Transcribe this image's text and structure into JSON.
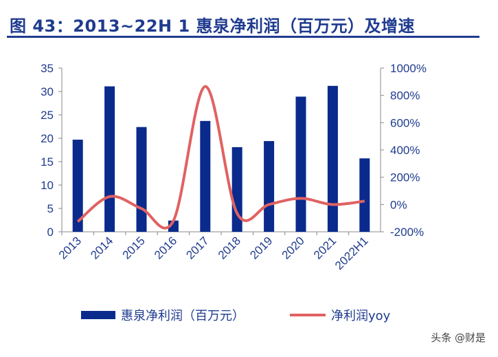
{
  "title": "图 43：2013~22H 1 惠泉净利润（百万元）及增速",
  "watermark": "头条 @财是",
  "chart_data": {
    "type": "bar",
    "categories": [
      "2013",
      "2014",
      "2015",
      "2016",
      "2017",
      "2018",
      "2019",
      "2020",
      "2021",
      "2022H1"
    ],
    "series": [
      {
        "name": "惠泉净利润（百万元）",
        "type": "bar",
        "axis": "left",
        "color": "#0a2a8c",
        "values": [
          19.7,
          31.1,
          22.4,
          2.4,
          23.7,
          18.1,
          19.4,
          28.9,
          31.2,
          15.7
        ]
      },
      {
        "name": "净利润yoy",
        "type": "line",
        "axis": "right",
        "color": "#e06262",
        "values": [
          -125,
          58,
          -30,
          -120,
          865,
          -65,
          0,
          45,
          0,
          25
        ]
      }
    ],
    "y_left": {
      "min": 0,
      "max": 35,
      "ticks": [
        0,
        5,
        10,
        15,
        20,
        25,
        30,
        35
      ]
    },
    "y_right": {
      "min": -200,
      "max": 1000,
      "ticks": [
        "-200%",
        "0%",
        "200%",
        "400%",
        "600%",
        "800%",
        "1000%"
      ]
    },
    "legend": "bottom",
    "grid": false
  }
}
